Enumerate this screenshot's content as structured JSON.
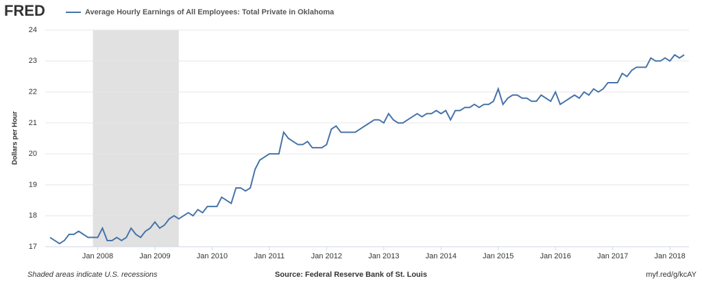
{
  "chart_data": {
    "type": "line",
    "logo": "FRED",
    "title": "Average Hourly Earnings of All Employees: Total Private in Oklahoma",
    "ylabel": "Dollars per Hour",
    "note": "Shaded areas indicate U.S. recessions",
    "source": "Source: Federal Reserve Bank of St. Louis",
    "link": "myf.red/g/kcAY",
    "grid": true,
    "recessions": [
      [
        "2007-12",
        "2009-06"
      ]
    ],
    "xlim": [
      "2007-02",
      "2018-05"
    ],
    "xticks": [
      {
        "value": "2008-01",
        "label": "Jan 2008"
      },
      {
        "value": "2009-01",
        "label": "Jan 2009"
      },
      {
        "value": "2010-01",
        "label": "Jan 2010"
      },
      {
        "value": "2011-01",
        "label": "Jan 2011"
      },
      {
        "value": "2012-01",
        "label": "Jan 2012"
      },
      {
        "value": "2013-01",
        "label": "Jan 2013"
      },
      {
        "value": "2014-01",
        "label": "Jan 2014"
      },
      {
        "value": "2015-01",
        "label": "Jan 2015"
      },
      {
        "value": "2016-01",
        "label": "Jan 2016"
      },
      {
        "value": "2017-01",
        "label": "Jan 2017"
      },
      {
        "value": "2018-01",
        "label": "Jan 2018"
      }
    ],
    "ylim": [
      17,
      24
    ],
    "yticks": [
      17,
      18,
      19,
      20,
      21,
      22,
      23,
      24
    ],
    "x": [
      "2007-03",
      "2007-04",
      "2007-05",
      "2007-06",
      "2007-07",
      "2007-08",
      "2007-09",
      "2007-10",
      "2007-11",
      "2007-12",
      "2008-01",
      "2008-02",
      "2008-03",
      "2008-04",
      "2008-05",
      "2008-06",
      "2008-07",
      "2008-08",
      "2008-09",
      "2008-10",
      "2008-11",
      "2008-12",
      "2009-01",
      "2009-02",
      "2009-03",
      "2009-04",
      "2009-05",
      "2009-06",
      "2009-07",
      "2009-08",
      "2009-09",
      "2009-10",
      "2009-11",
      "2009-12",
      "2010-01",
      "2010-02",
      "2010-03",
      "2010-04",
      "2010-05",
      "2010-06",
      "2010-07",
      "2010-08",
      "2010-09",
      "2010-10",
      "2010-11",
      "2010-12",
      "2011-01",
      "2011-02",
      "2011-03",
      "2011-04",
      "2011-05",
      "2011-06",
      "2011-07",
      "2011-08",
      "2011-09",
      "2011-10",
      "2011-11",
      "2011-12",
      "2012-01",
      "2012-02",
      "2012-03",
      "2012-04",
      "2012-05",
      "2012-06",
      "2012-07",
      "2012-08",
      "2012-09",
      "2012-10",
      "2012-11",
      "2012-12",
      "2013-01",
      "2013-02",
      "2013-03",
      "2013-04",
      "2013-05",
      "2013-06",
      "2013-07",
      "2013-08",
      "2013-09",
      "2013-10",
      "2013-11",
      "2013-12",
      "2014-01",
      "2014-02",
      "2014-03",
      "2014-04",
      "2014-05",
      "2014-06",
      "2014-07",
      "2014-08",
      "2014-09",
      "2014-10",
      "2014-11",
      "2014-12",
      "2015-01",
      "2015-02",
      "2015-03",
      "2015-04",
      "2015-05",
      "2015-06",
      "2015-07",
      "2015-08",
      "2015-09",
      "2015-10",
      "2015-11",
      "2015-12",
      "2016-01",
      "2016-02",
      "2016-03",
      "2016-04",
      "2016-05",
      "2016-06",
      "2016-07",
      "2016-08",
      "2016-09",
      "2016-10",
      "2016-11",
      "2016-12",
      "2017-01",
      "2017-02",
      "2017-03",
      "2017-04",
      "2017-05",
      "2017-06",
      "2017-07",
      "2017-08",
      "2017-09",
      "2017-10",
      "2017-11",
      "2017-12",
      "2018-01",
      "2018-02",
      "2018-03",
      "2018-04"
    ],
    "series": [
      {
        "name": "Average Hourly Earnings of All Employees: Total Private in Oklahoma",
        "color": "#4572a7",
        "values": [
          17.3,
          17.2,
          17.1,
          17.2,
          17.4,
          17.4,
          17.5,
          17.4,
          17.3,
          17.3,
          17.3,
          17.6,
          17.2,
          17.2,
          17.3,
          17.2,
          17.3,
          17.6,
          17.4,
          17.3,
          17.5,
          17.6,
          17.8,
          17.6,
          17.7,
          17.9,
          18.0,
          17.9,
          18.0,
          18.1,
          18.0,
          18.2,
          18.1,
          18.3,
          18.3,
          18.3,
          18.6,
          18.5,
          18.4,
          18.9,
          18.9,
          18.8,
          18.9,
          19.5,
          19.8,
          19.9,
          20.0,
          20.0,
          20.0,
          20.7,
          20.5,
          20.4,
          20.3,
          20.3,
          20.4,
          20.2,
          20.2,
          20.2,
          20.3,
          20.8,
          20.9,
          20.7,
          20.7,
          20.7,
          20.7,
          20.8,
          20.9,
          21.0,
          21.1,
          21.1,
          21.0,
          21.3,
          21.1,
          21.0,
          21.0,
          21.1,
          21.2,
          21.3,
          21.2,
          21.3,
          21.3,
          21.4,
          21.3,
          21.4,
          21.1,
          21.4,
          21.4,
          21.5,
          21.5,
          21.6,
          21.5,
          21.6,
          21.6,
          21.7,
          22.1,
          21.6,
          21.8,
          21.9,
          21.9,
          21.8,
          21.8,
          21.7,
          21.7,
          21.9,
          21.8,
          21.7,
          22.0,
          21.6,
          21.7,
          21.8,
          21.9,
          21.8,
          22.0,
          21.9,
          22.1,
          22.0,
          22.1,
          22.3,
          22.3,
          22.3,
          22.6,
          22.5,
          22.7,
          22.8,
          22.8,
          22.8,
          23.1,
          23.0,
          23.0,
          23.1,
          23.0,
          23.2,
          23.1,
          23.2
        ]
      }
    ]
  }
}
